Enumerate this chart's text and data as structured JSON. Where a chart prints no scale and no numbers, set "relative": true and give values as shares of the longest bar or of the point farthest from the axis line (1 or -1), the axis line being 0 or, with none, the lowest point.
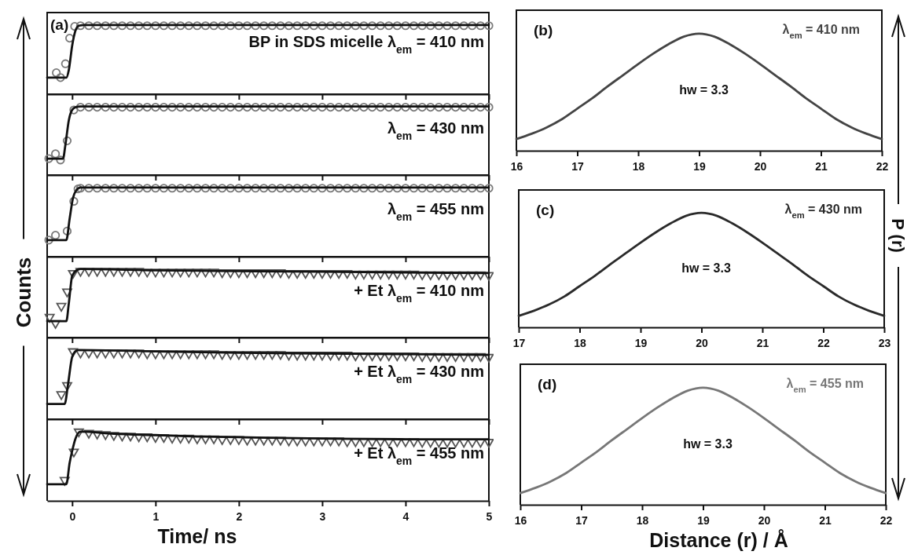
{
  "chart_data": [
    {
      "type": "scatter",
      "relative": true,
      "xlim": [
        -0.3,
        5
      ],
      "xticks": [
        0,
        1,
        2,
        3,
        4,
        5
      ],
      "tick_labels": false,
      "annotations": [
        "(a)",
        "BP in SDS micelle λ$_{em}$ = 410 nm"
      ],
      "series": [
        {
          "marker": "circle",
          "color": "#7a7a7a",
          "x": [
            -0.19,
            -0.14,
            -0.08,
            -0.03,
            0.03,
            0.1,
            0.2,
            0.3,
            0.4,
            0.5,
            0.6,
            0.7,
            0.8,
            0.9,
            1.0,
            1.1,
            1.2,
            1.3,
            1.4,
            1.5,
            1.6,
            1.7,
            1.8,
            1.9,
            2.0,
            2.1,
            2.2,
            2.3,
            2.4,
            2.5,
            2.6,
            2.7,
            2.8,
            2.9,
            3.0,
            3.1,
            3.2,
            3.3,
            3.4,
            3.5,
            3.6,
            3.7,
            3.8,
            3.9,
            4.0,
            4.1,
            4.2,
            4.3,
            4.4,
            4.5,
            4.6,
            4.7,
            4.8,
            4.9,
            5.0
          ],
          "values": [
            0.31,
            0.24,
            0.44,
            0.81,
            0.98,
            0.99,
            0.99,
            0.99,
            0.99,
            0.99,
            0.99,
            0.99,
            0.99,
            0.99,
            0.99,
            0.99,
            0.99,
            0.99,
            0.99,
            0.99,
            0.99,
            0.99,
            0.99,
            0.99,
            0.99,
            0.99,
            0.99,
            0.99,
            0.99,
            0.99,
            0.99,
            0.99,
            0.99,
            0.99,
            0.99,
            0.99,
            0.99,
            0.99,
            0.99,
            0.99,
            0.99,
            0.99,
            0.99,
            0.99,
            0.99,
            0.99,
            0.99,
            0.99,
            0.99,
            0.99,
            0.99,
            0.99,
            0.99,
            0.99,
            0.99
          ]
        },
        {
          "type": "line",
          "marker": "none",
          "color": "#111111",
          "x": [
            -0.3,
            -0.07,
            -0.04,
            0,
            0.04,
            0.08,
            0.15,
            5
          ],
          "values": [
            0.24,
            0.24,
            0.35,
            0.7,
            0.92,
            0.99,
            1,
            1
          ]
        }
      ]
    },
    {
      "type": "scatter",
      "relative": true,
      "xlim": [
        -0.3,
        5
      ],
      "xticks": [
        0,
        1,
        2,
        3,
        4,
        5
      ],
      "tick_labels": false,
      "annotations": [
        "λ$_{em}$ = 430 nm"
      ],
      "series": [
        {
          "marker": "circle",
          "color": "#7a7a7a",
          "x": [
            -0.28,
            -0.2,
            -0.14,
            -0.06,
            0.02,
            0.1,
            0.2,
            0.3,
            0.4,
            0.5,
            0.6,
            0.7,
            0.8,
            0.9,
            1.0,
            1.1,
            1.2,
            1.3,
            1.4,
            1.5,
            1.6,
            1.7,
            1.8,
            1.9,
            2.0,
            2.1,
            2.2,
            2.3,
            2.4,
            2.5,
            2.6,
            2.7,
            2.8,
            2.9,
            3.0,
            3.1,
            3.2,
            3.3,
            3.4,
            3.5,
            3.6,
            3.7,
            3.8,
            3.9,
            4.0,
            4.1,
            4.2,
            4.3,
            4.4,
            4.5,
            4.6,
            4.7,
            4.8,
            4.9,
            5.0
          ],
          "values": [
            0.24,
            0.31,
            0.22,
            0.5,
            0.95,
            0.99,
            0.99,
            0.99,
            0.99,
            0.99,
            0.99,
            0.99,
            0.99,
            0.99,
            0.99,
            0.99,
            0.99,
            0.99,
            0.99,
            0.99,
            0.99,
            0.99,
            0.99,
            0.99,
            0.99,
            0.99,
            0.99,
            0.99,
            0.99,
            0.99,
            0.99,
            0.99,
            0.99,
            0.99,
            0.99,
            0.99,
            0.99,
            0.99,
            0.99,
            0.99,
            0.99,
            0.99,
            0.99,
            0.99,
            0.99,
            0.99,
            0.99,
            0.99,
            0.99,
            0.99,
            0.99,
            0.99,
            0.99,
            0.99,
            0.99
          ]
        },
        {
          "type": "line",
          "marker": "none",
          "color": "#111111",
          "x": [
            -0.3,
            -0.11,
            -0.08,
            -0.04,
            0,
            0.04,
            0.1,
            5
          ],
          "values": [
            0.24,
            0.24,
            0.45,
            0.8,
            0.95,
            0.99,
            1,
            1
          ]
        }
      ]
    },
    {
      "type": "scatter",
      "relative": true,
      "xlim": [
        -0.3,
        5
      ],
      "xticks": [
        0,
        1,
        2,
        3,
        4,
        5
      ],
      "tick_labels": false,
      "annotations": [
        "λ$_{em}$ = 455 nm"
      ],
      "series": [
        {
          "marker": "circle",
          "color": "#7a7a7a",
          "x": [
            -0.28,
            -0.2,
            -0.06,
            0.02,
            0.07,
            0.1,
            0.2,
            0.3,
            0.4,
            0.5,
            0.6,
            0.7,
            0.8,
            0.9,
            1.0,
            1.1,
            1.2,
            1.3,
            1.4,
            1.5,
            1.6,
            1.7,
            1.8,
            1.9,
            2.0,
            2.1,
            2.2,
            2.3,
            2.4,
            2.5,
            2.6,
            2.7,
            2.8,
            2.9,
            3.0,
            3.1,
            3.2,
            3.3,
            3.4,
            3.5,
            3.6,
            3.7,
            3.8,
            3.9,
            4.0,
            4.1,
            4.2,
            4.3,
            4.4,
            4.5,
            4.6,
            4.7,
            4.8,
            4.9,
            5.0
          ],
          "values": [
            0.24,
            0.31,
            0.37,
            0.8,
            0.98,
            0.99,
            0.99,
            0.99,
            0.99,
            0.99,
            0.99,
            0.99,
            0.99,
            0.99,
            0.99,
            0.99,
            0.99,
            0.99,
            0.99,
            0.99,
            0.99,
            0.99,
            0.99,
            0.99,
            0.99,
            0.99,
            0.99,
            0.99,
            0.99,
            0.99,
            0.99,
            0.99,
            0.99,
            0.99,
            0.99,
            0.99,
            0.99,
            0.99,
            0.99,
            0.99,
            0.99,
            0.99,
            0.99,
            0.99,
            0.99,
            0.99,
            0.99,
            0.99,
            0.99,
            0.99,
            0.99,
            0.99,
            0.99,
            0.99,
            0.99
          ]
        },
        {
          "type": "line",
          "marker": "none",
          "color": "#111111",
          "x": [
            -0.3,
            -0.07,
            -0.03,
            0.01,
            0.05,
            0.1,
            0.15,
            5
          ],
          "values": [
            0.24,
            0.24,
            0.55,
            0.85,
            0.96,
            1,
            1,
            1
          ]
        }
      ]
    },
    {
      "type": "scatter",
      "relative": true,
      "xlim": [
        -0.3,
        5
      ],
      "xticks": [
        0,
        1,
        2,
        3,
        4,
        5
      ],
      "tick_labels": false,
      "ylabel": "Counts",
      "annotations": [
        "+ Et λ$_{em}$ = 410 nm"
      ],
      "series": [
        {
          "marker": "triangle",
          "color": "#555555",
          "x": [
            -0.27,
            -0.2,
            -0.13,
            -0.06,
            0.01,
            0.1,
            0.2,
            0.3,
            0.4,
            0.5,
            0.6,
            0.7,
            0.8,
            0.9,
            1.0,
            1.1,
            1.2,
            1.3,
            1.4,
            1.5,
            1.6,
            1.7,
            1.8,
            1.9,
            2.0,
            2.1,
            2.2,
            2.3,
            2.4,
            2.5,
            2.6,
            2.7,
            2.8,
            2.9,
            3.0,
            3.1,
            3.2,
            3.3,
            3.4,
            3.5,
            3.6,
            3.7,
            3.8,
            3.9,
            4.0,
            4.1,
            4.2,
            4.3,
            4.4,
            4.5,
            4.6,
            4.7,
            4.8,
            4.9,
            5.0
          ],
          "values": [
            0.29,
            0.2,
            0.45,
            0.66,
            0.93,
            0.96,
            0.96,
            0.96,
            0.96,
            0.96,
            0.96,
            0.96,
            0.96,
            0.95,
            0.95,
            0.95,
            0.95,
            0.95,
            0.95,
            0.95,
            0.95,
            0.95,
            0.94,
            0.94,
            0.94,
            0.94,
            0.94,
            0.94,
            0.94,
            0.94,
            0.93,
            0.93,
            0.93,
            0.93,
            0.93,
            0.93,
            0.93,
            0.93,
            0.92,
            0.92,
            0.92,
            0.92,
            0.92,
            0.92,
            0.92,
            0.92,
            0.91,
            0.91,
            0.91,
            0.91,
            0.91,
            0.91,
            0.91,
            0.91,
            0.9
          ]
        },
        {
          "type": "line",
          "marker": "none",
          "color": "#111111",
          "x": [
            -0.3,
            -0.07,
            -0.04,
            0,
            0.05,
            0.1,
            1,
            2,
            3,
            4,
            5
          ],
          "values": [
            0.24,
            0.24,
            0.5,
            0.9,
            0.98,
            1,
            0.98,
            0.97,
            0.96,
            0.95,
            0.94
          ]
        }
      ]
    },
    {
      "type": "scatter",
      "relative": true,
      "xlim": [
        -0.3,
        5
      ],
      "xticks": [
        0,
        1,
        2,
        3,
        4,
        5
      ],
      "tick_labels": false,
      "annotations": [
        "+ Et λ$_{em}$ = 430 nm"
      ],
      "series": [
        {
          "marker": "triangle",
          "color": "#555555",
          "x": [
            -0.13,
            -0.06,
            0.01,
            0.1,
            0.2,
            0.3,
            0.4,
            0.5,
            0.6,
            0.7,
            0.8,
            0.9,
            1.0,
            1.1,
            1.2,
            1.3,
            1.4,
            1.5,
            1.6,
            1.7,
            1.8,
            1.9,
            2.0,
            2.1,
            2.2,
            2.3,
            2.4,
            2.5,
            2.6,
            2.7,
            2.8,
            2.9,
            3.0,
            3.1,
            3.2,
            3.3,
            3.4,
            3.5,
            3.6,
            3.7,
            3.8,
            3.9,
            4.0,
            4.1,
            4.2,
            4.3,
            4.4,
            4.5,
            4.6,
            4.7,
            4.8,
            4.9,
            5.0
          ],
          "values": [
            0.35,
            0.48,
            0.97,
            0.95,
            0.95,
            0.95,
            0.95,
            0.95,
            0.95,
            0.95,
            0.95,
            0.94,
            0.94,
            0.94,
            0.94,
            0.94,
            0.94,
            0.94,
            0.94,
            0.94,
            0.93,
            0.93,
            0.93,
            0.93,
            0.93,
            0.93,
            0.93,
            0.93,
            0.92,
            0.92,
            0.92,
            0.92,
            0.92,
            0.92,
            0.92,
            0.92,
            0.91,
            0.91,
            0.91,
            0.91,
            0.91,
            0.91,
            0.91,
            0.91,
            0.9,
            0.9,
            0.9,
            0.9,
            0.9,
            0.9,
            0.9,
            0.9,
            0.89
          ]
        },
        {
          "type": "line",
          "marker": "none",
          "color": "#111111",
          "x": [
            -0.3,
            -0.09,
            -0.05,
            0,
            0.05,
            0.08,
            1,
            2,
            3,
            4,
            5
          ],
          "values": [
            0.22,
            0.22,
            0.5,
            0.9,
            0.99,
            1,
            0.98,
            0.96,
            0.95,
            0.94,
            0.93
          ]
        }
      ]
    },
    {
      "type": "scatter",
      "relative": true,
      "xlim": [
        -0.3,
        5
      ],
      "xticks": [
        0,
        1,
        2,
        3,
        4,
        5
      ],
      "tick_labels": "x",
      "xlabel": "Time/ ns",
      "annotations": [
        "+ Et λ$_{em}$ = 455 nm"
      ],
      "series": [
        {
          "marker": "triangle",
          "color": "#555555",
          "x": [
            -0.09,
            0.02,
            0.08,
            0.2,
            0.3,
            0.4,
            0.5,
            0.6,
            0.7,
            0.8,
            0.9,
            1.0,
            1.1,
            1.2,
            1.3,
            1.4,
            1.5,
            1.6,
            1.7,
            1.8,
            1.9,
            2.0,
            2.1,
            2.2,
            2.3,
            2.4,
            2.5,
            2.6,
            2.7,
            2.8,
            2.9,
            3.0,
            3.1,
            3.2,
            3.3,
            3.4,
            3.5,
            3.6,
            3.7,
            3.8,
            3.9,
            4.0,
            4.1,
            4.2,
            4.3,
            4.4,
            4.5,
            4.6,
            4.7,
            4.8,
            4.9,
            5.0
          ],
          "values": [
            0.29,
            0.7,
            0.99,
            0.97,
            0.96,
            0.95,
            0.94,
            0.93,
            0.93,
            0.92,
            0.92,
            0.91,
            0.91,
            0.9,
            0.9,
            0.9,
            0.89,
            0.89,
            0.89,
            0.88,
            0.88,
            0.88,
            0.87,
            0.87,
            0.87,
            0.87,
            0.87,
            0.86,
            0.86,
            0.86,
            0.86,
            0.86,
            0.86,
            0.86,
            0.85,
            0.85,
            0.85,
            0.85,
            0.85,
            0.85,
            0.85,
            0.85,
            0.85,
            0.84,
            0.84,
            0.84,
            0.84,
            0.84,
            0.84,
            0.84,
            0.84,
            0.84
          ]
        },
        {
          "type": "line",
          "marker": "none",
          "color": "#111111",
          "x": [
            -0.3,
            -0.07,
            -0.03,
            0,
            0.04,
            0.1,
            0.5,
            1,
            1.5,
            2,
            3,
            4,
            5
          ],
          "values": [
            0.24,
            0.24,
            0.55,
            0.72,
            0.9,
            1,
            0.97,
            0.95,
            0.93,
            0.92,
            0.9,
            0.89,
            0.89
          ]
        }
      ]
    },
    {
      "type": "line",
      "relative": true,
      "xlim": [
        16,
        22
      ],
      "xticks": [
        16,
        17,
        18,
        19,
        20,
        21,
        22
      ],
      "tick_labels": "x",
      "annotations": [
        "(b)",
        "λ$_{em}$ = 410 nm",
        "hw = 3.3"
      ],
      "series": [
        {
          "color": "#444444",
          "x": [
            16,
            16.25,
            16.5,
            16.75,
            17,
            17.25,
            17.5,
            17.75,
            18,
            18.25,
            18.5,
            18.75,
            19,
            19.25,
            19.5,
            19.75,
            20,
            20.25,
            20.5,
            20.75,
            21,
            21.25,
            21.5,
            21.75,
            22
          ],
          "values": [
            0.1,
            0.145,
            0.2,
            0.27,
            0.36,
            0.45,
            0.55,
            0.645,
            0.74,
            0.83,
            0.91,
            0.975,
            1,
            0.975,
            0.91,
            0.83,
            0.74,
            0.645,
            0.55,
            0.45,
            0.36,
            0.27,
            0.2,
            0.145,
            0.1
          ]
        }
      ]
    },
    {
      "type": "line",
      "relative": true,
      "xlim": [
        17,
        23
      ],
      "xticks": [
        17,
        18,
        19,
        20,
        21,
        22,
        23
      ],
      "tick_labels": "x",
      "ylabel": "P (r)",
      "annotations": [
        "(c)",
        "λ$_{em}$ = 430 nm",
        "hw = 3.3"
      ],
      "series": [
        {
          "color": "#2a2a2a",
          "x": [
            17,
            17.25,
            17.5,
            17.75,
            18,
            18.25,
            18.5,
            18.75,
            19,
            19.25,
            19.5,
            19.75,
            20,
            20.25,
            20.5,
            20.75,
            21,
            21.25,
            21.5,
            21.75,
            22,
            22.25,
            22.5,
            22.75,
            23
          ],
          "values": [
            0.1,
            0.145,
            0.2,
            0.27,
            0.36,
            0.45,
            0.55,
            0.645,
            0.74,
            0.83,
            0.91,
            0.975,
            1,
            0.975,
            0.91,
            0.83,
            0.74,
            0.645,
            0.55,
            0.45,
            0.36,
            0.27,
            0.2,
            0.145,
            0.1
          ]
        }
      ]
    },
    {
      "type": "line",
      "relative": true,
      "xlim": [
        16,
        22
      ],
      "xticks": [
        16,
        17,
        18,
        19,
        20,
        21,
        22
      ],
      "tick_labels": "x",
      "xlabel": "Distance (r)  /  Å",
      "annotations": [
        "(d)",
        "λ$_{em}$ = 455 nm",
        "hw = 3.3"
      ],
      "series": [
        {
          "color": "#777777",
          "x": [
            16,
            16.25,
            16.5,
            16.75,
            17,
            17.25,
            17.5,
            17.75,
            18,
            18.25,
            18.5,
            18.75,
            19,
            19.25,
            19.5,
            19.75,
            20,
            20.25,
            20.5,
            20.75,
            21,
            21.25,
            21.5,
            21.75,
            22
          ],
          "values": [
            0.1,
            0.145,
            0.2,
            0.27,
            0.36,
            0.45,
            0.55,
            0.645,
            0.74,
            0.83,
            0.91,
            0.975,
            1,
            0.975,
            0.91,
            0.83,
            0.74,
            0.645,
            0.55,
            0.45,
            0.36,
            0.27,
            0.2,
            0.145,
            0.1
          ]
        }
      ]
    }
  ]
}
